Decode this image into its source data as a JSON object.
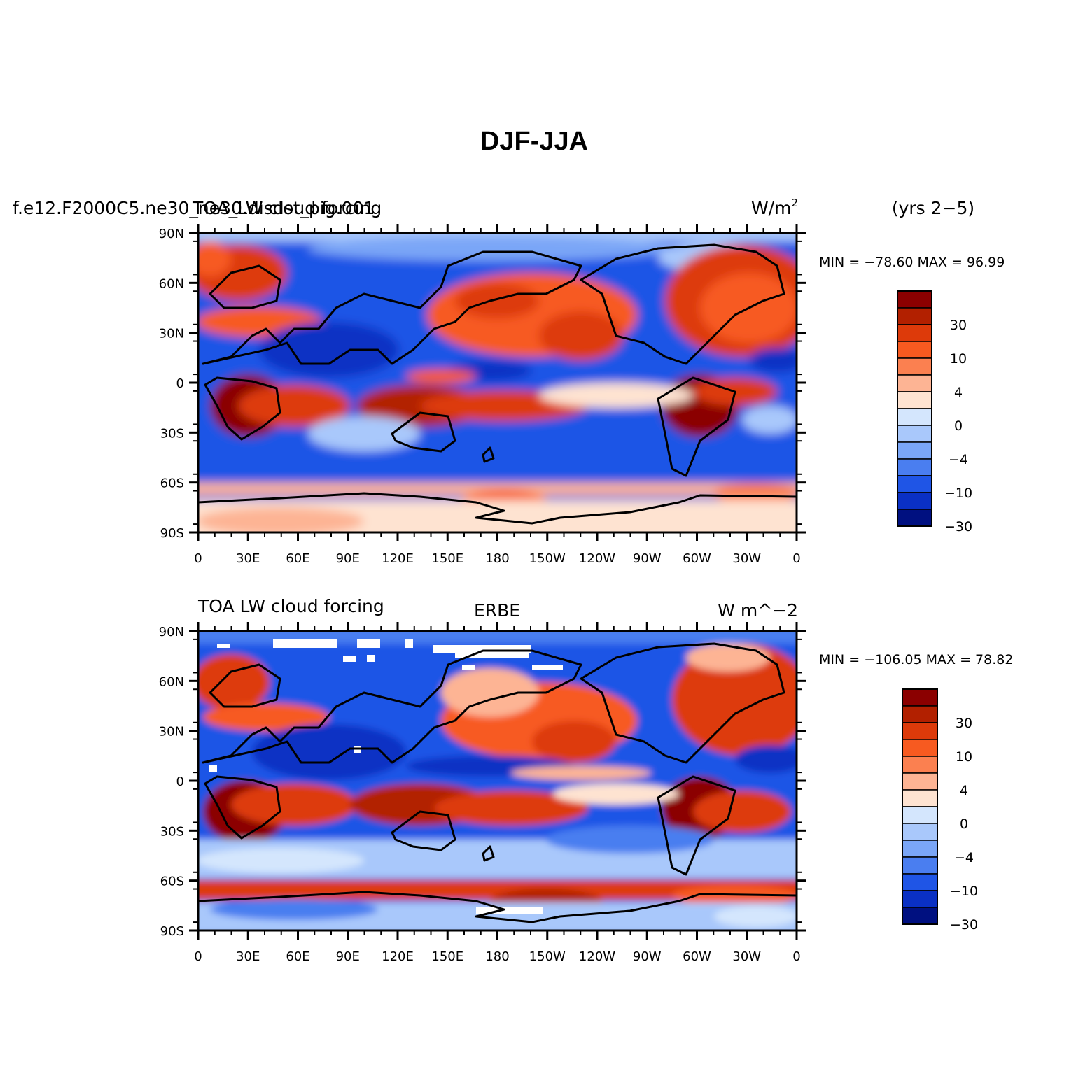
{
  "title": "DJF-JJA",
  "panels": [
    {
      "left_label": "f.e12.F2000C5.ne30_ne30.disdst_pig.001",
      "center_label": "TOA_LW cloud forcing",
      "units": "W/m",
      "units_sup": "2",
      "right_label": "(yrs 2−5)",
      "stats": "MIN = −78.60  MAX =   96.99",
      "colorbar_labels": [
        "30",
        "10",
        "4",
        "0",
        "−4",
        "−10",
        "−30"
      ]
    },
    {
      "left_label": "TOA LW cloud forcing",
      "center_label": "ERBE",
      "units": "W m^−2",
      "units_sup": "",
      "right_label": "",
      "stats": "MIN = −106.05  MAX =   78.82",
      "colorbar_labels": [
        "30",
        "10",
        "4",
        "0",
        "−4",
        "−10",
        "−30"
      ]
    }
  ],
  "axes": {
    "lat_labels": [
      "90N",
      "60N",
      "30N",
      "0",
      "30S",
      "60S",
      "90S"
    ],
    "lon_labels": [
      "0",
      "30E",
      "60E",
      "90E",
      "120E",
      "150E",
      "180",
      "150W",
      "120W",
      "90W",
      "60W",
      "30W",
      "0"
    ]
  },
  "colors": {
    "levels": [
      "#8b0000",
      "#b22000",
      "#dd3a0a",
      "#f75a20",
      "#fb8050",
      "#fdb494",
      "#fee3d1",
      "#d4e6fd",
      "#a9c8fb",
      "#7aa6f7",
      "#4a7ef0",
      "#1f55e6",
      "#0a30c4",
      "#001080"
    ]
  }
}
